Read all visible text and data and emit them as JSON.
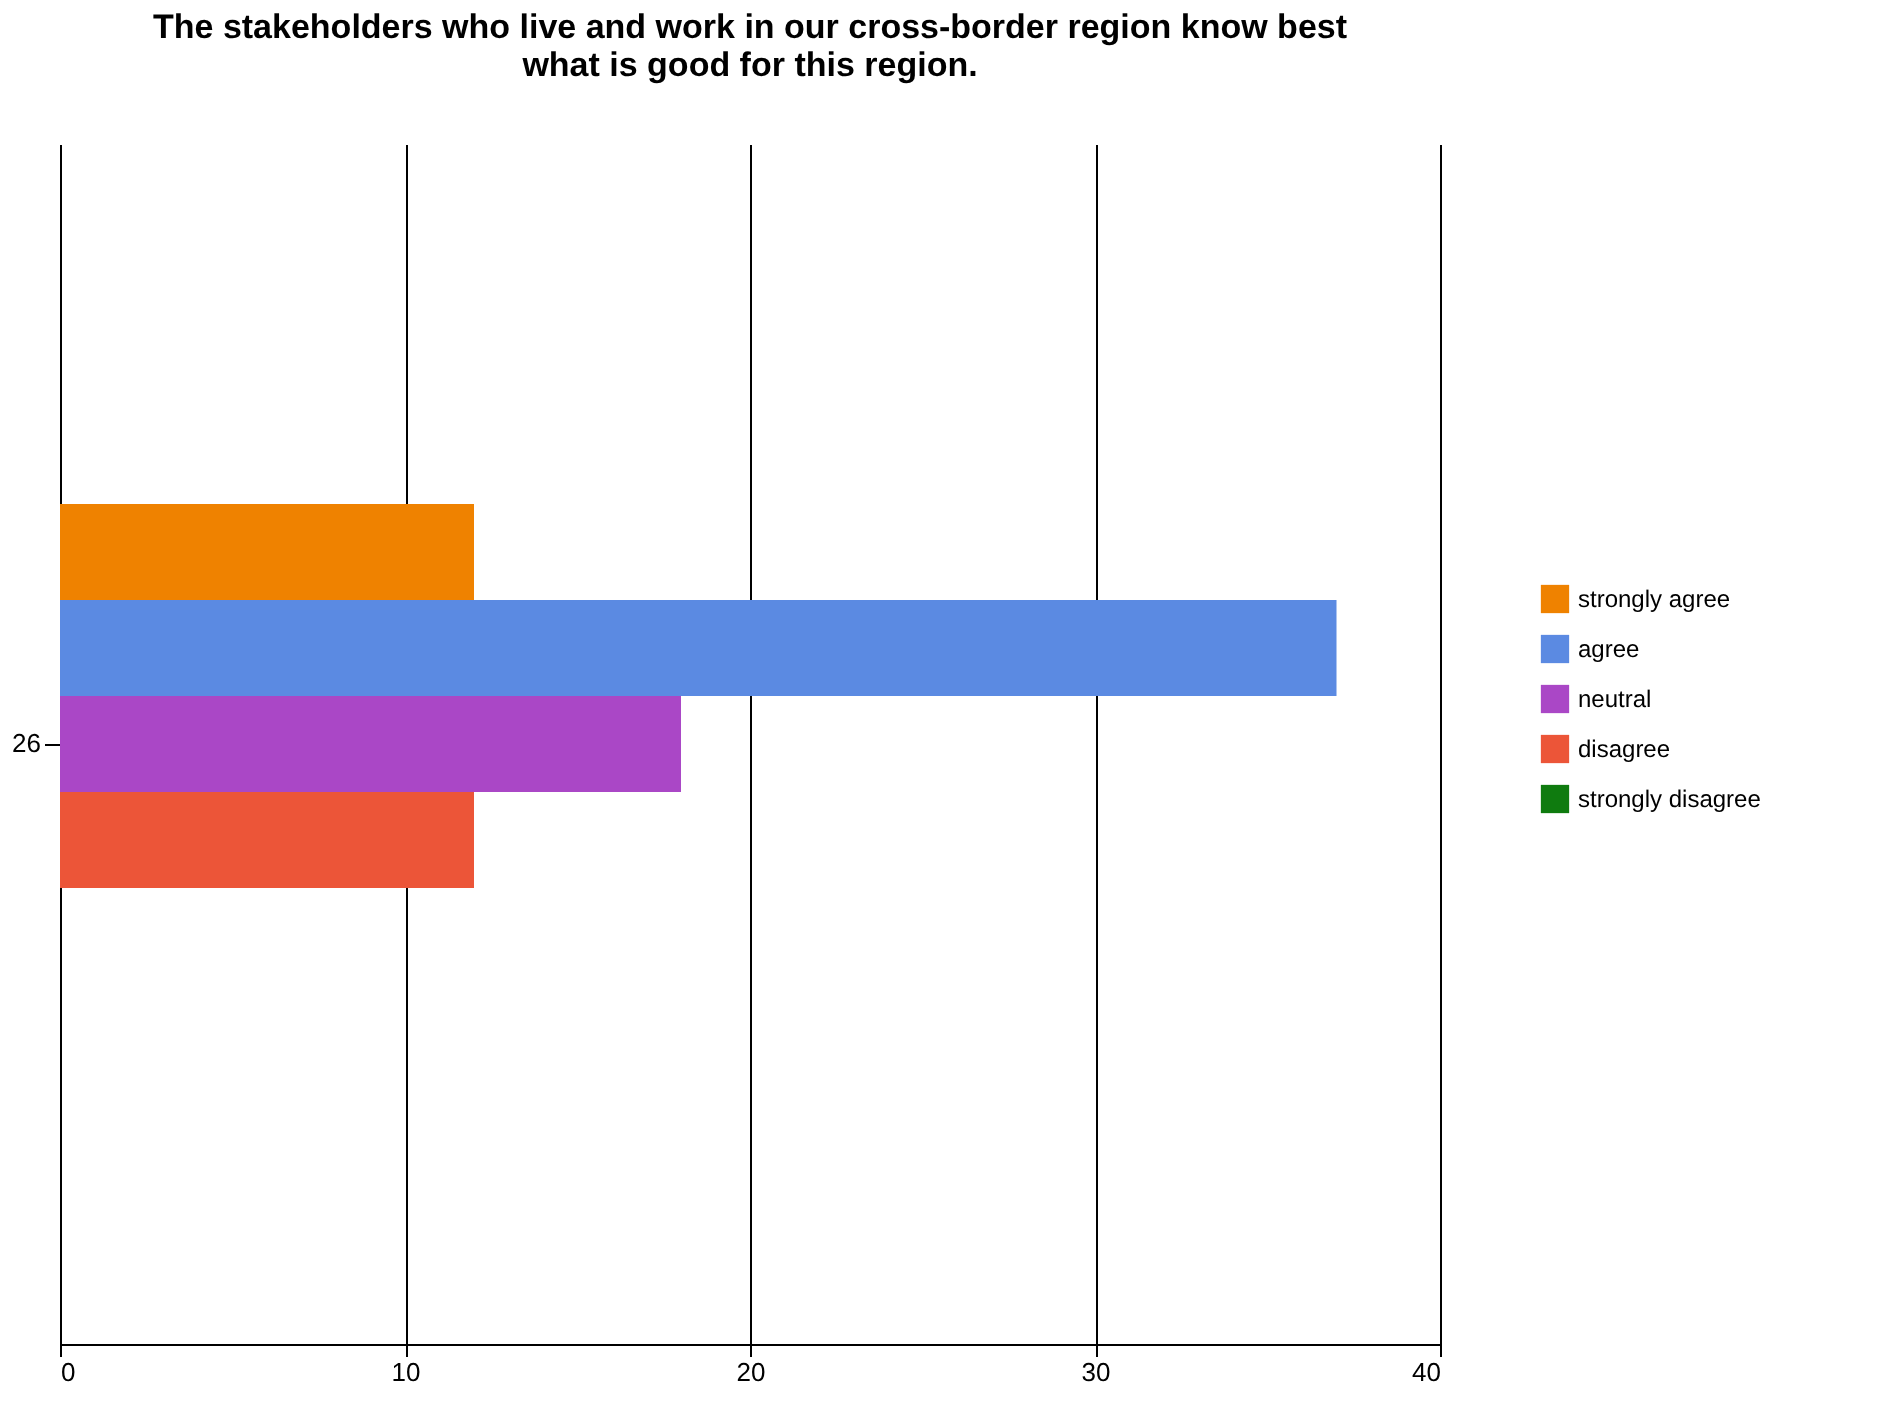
{
  "chart_data": {
    "type": "bar",
    "orientation": "horizontal",
    "title": "The stakeholders who live and work in our cross-border region know best what is good for this region.",
    "categories": [
      "26"
    ],
    "series": [
      {
        "name": "strongly agree",
        "color": "#ef8200",
        "values": [
          12
        ]
      },
      {
        "name": "agree",
        "color": "#5b8ae2",
        "values": [
          37
        ]
      },
      {
        "name": "neutral",
        "color": "#aa47c6",
        "values": [
          18
        ]
      },
      {
        "name": "disagree",
        "color": "#ec5538",
        "values": [
          12
        ]
      },
      {
        "name": "strongly disagree",
        "color": "#0f7b0f",
        "values": [
          0
        ]
      }
    ],
    "xlim": [
      0,
      40
    ],
    "xticks": [
      0,
      10,
      20,
      30,
      40
    ],
    "grid": "x",
    "legend": "right"
  }
}
